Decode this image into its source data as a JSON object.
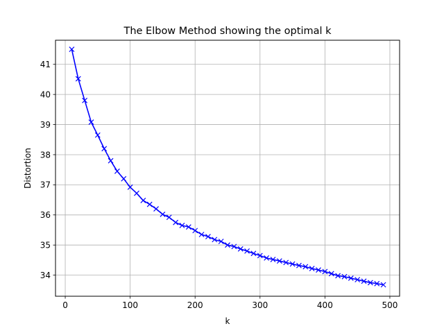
{
  "chart_data": {
    "type": "line",
    "title": "The Elbow Method showing the optimal k",
    "xlabel": "k",
    "ylabel": "Distortion",
    "xlim": [
      -15,
      515
    ],
    "ylim": [
      33.3,
      41.8
    ],
    "xticks": [
      0,
      100,
      200,
      300,
      400,
      500
    ],
    "yticks": [
      34,
      35,
      36,
      37,
      38,
      39,
      40,
      41
    ],
    "grid": true,
    "marker": "x",
    "color": "#0000ff",
    "series": [
      {
        "x": [
          10,
          20,
          30,
          40,
          50,
          60,
          70,
          80,
          90,
          100,
          110,
          120,
          130,
          140,
          150,
          160,
          170,
          180,
          190,
          200,
          210,
          220,
          230,
          240,
          250,
          260,
          270,
          280,
          290,
          300,
          310,
          320,
          330,
          340,
          350,
          360,
          370,
          380,
          390,
          400,
          410,
          420,
          430,
          440,
          450,
          460,
          470,
          480,
          490
        ],
        "values": [
          41.5,
          40.52,
          39.8,
          39.08,
          38.65,
          38.2,
          37.8,
          37.45,
          37.2,
          36.92,
          36.72,
          36.48,
          36.35,
          36.2,
          36.02,
          35.92,
          35.75,
          35.65,
          35.6,
          35.48,
          35.35,
          35.28,
          35.18,
          35.12,
          35.0,
          34.95,
          34.87,
          34.8,
          34.72,
          34.65,
          34.57,
          34.52,
          34.47,
          34.42,
          34.37,
          34.32,
          34.28,
          34.22,
          34.17,
          34.12,
          34.05,
          33.98,
          33.95,
          33.9,
          33.85,
          33.8,
          33.75,
          33.72,
          33.68
        ]
      }
    ]
  }
}
